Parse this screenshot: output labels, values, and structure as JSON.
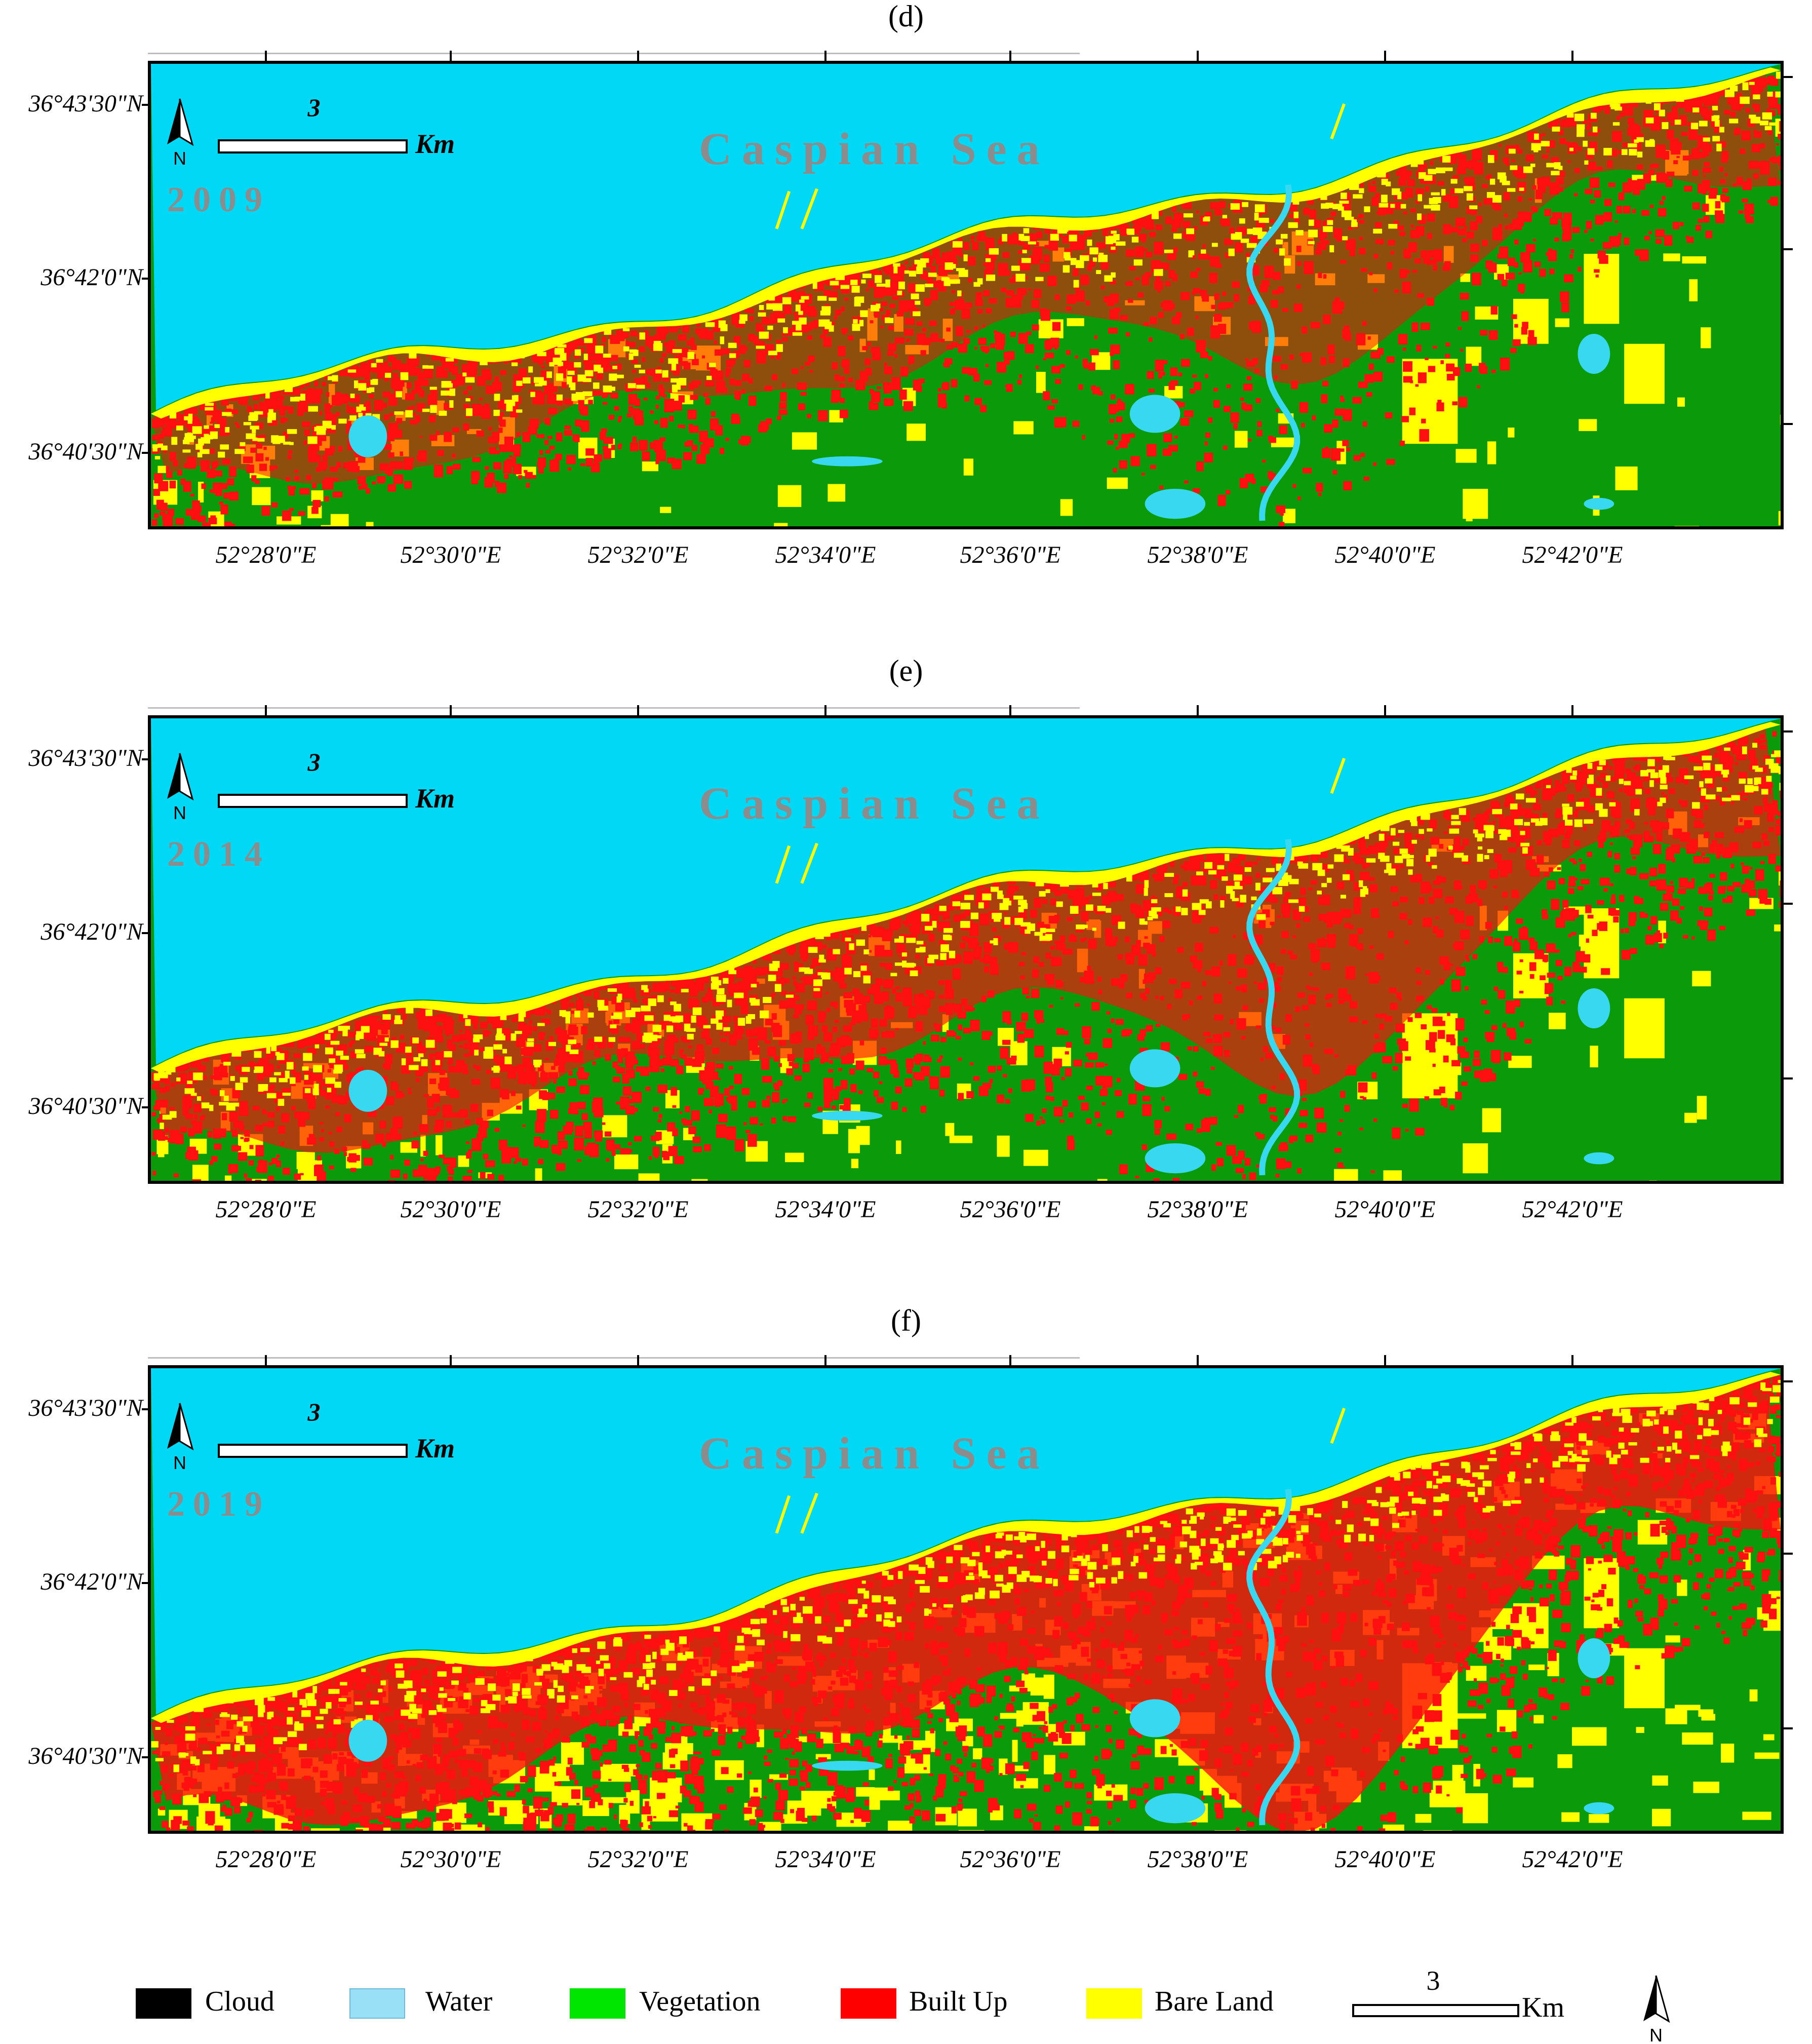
{
  "colors": {
    "sea": "#00d8f5",
    "vegetation": "#0a9a0a",
    "built_up": "#ff1010",
    "bare_land": "#ffff00",
    "water": "#38d8f0",
    "legend_cloud": "#000000",
    "legend_water": "#99e0f7",
    "legend_vegetation": "#00e600",
    "legend_built_up": "#ff0000",
    "legend_bare_land": "#ffff00",
    "overlay_text": "#8c8c8c"
  },
  "map_common": {
    "sea_label": "Caspian Sea",
    "scale_value": "3",
    "scale_unit": "Km",
    "north_letter": "N",
    "lat_labels": [
      "36°43'30\"N",
      "36°42'0\"N",
      "36°40'30\"N"
    ],
    "lon_labels": [
      "52°28'0\"E",
      "52°30'0\"E",
      "52°32'0\"E",
      "52°34'0\"E",
      "52°36'0\"E",
      "52°38'0\"E",
      "52°40'0\"E",
      "52°42'0\"E"
    ]
  },
  "panels": [
    {
      "label": "(d)",
      "year": "2009",
      "built_level": 0.35
    },
    {
      "label": "(e)",
      "year": "2014",
      "built_level": 0.55
    },
    {
      "label": "(f)",
      "year": "2019",
      "built_level": 0.85
    }
  ],
  "legend": {
    "items": [
      {
        "key": "cloud",
        "label": "Cloud"
      },
      {
        "key": "water",
        "label": "Water"
      },
      {
        "key": "vegetation",
        "label": "Vegetation"
      },
      {
        "key": "built_up",
        "label": "Built Up"
      },
      {
        "key": "bare_land",
        "label": "Bare Land"
      }
    ],
    "scale_value": "3",
    "scale_unit": "Km",
    "north_letter": "N"
  }
}
